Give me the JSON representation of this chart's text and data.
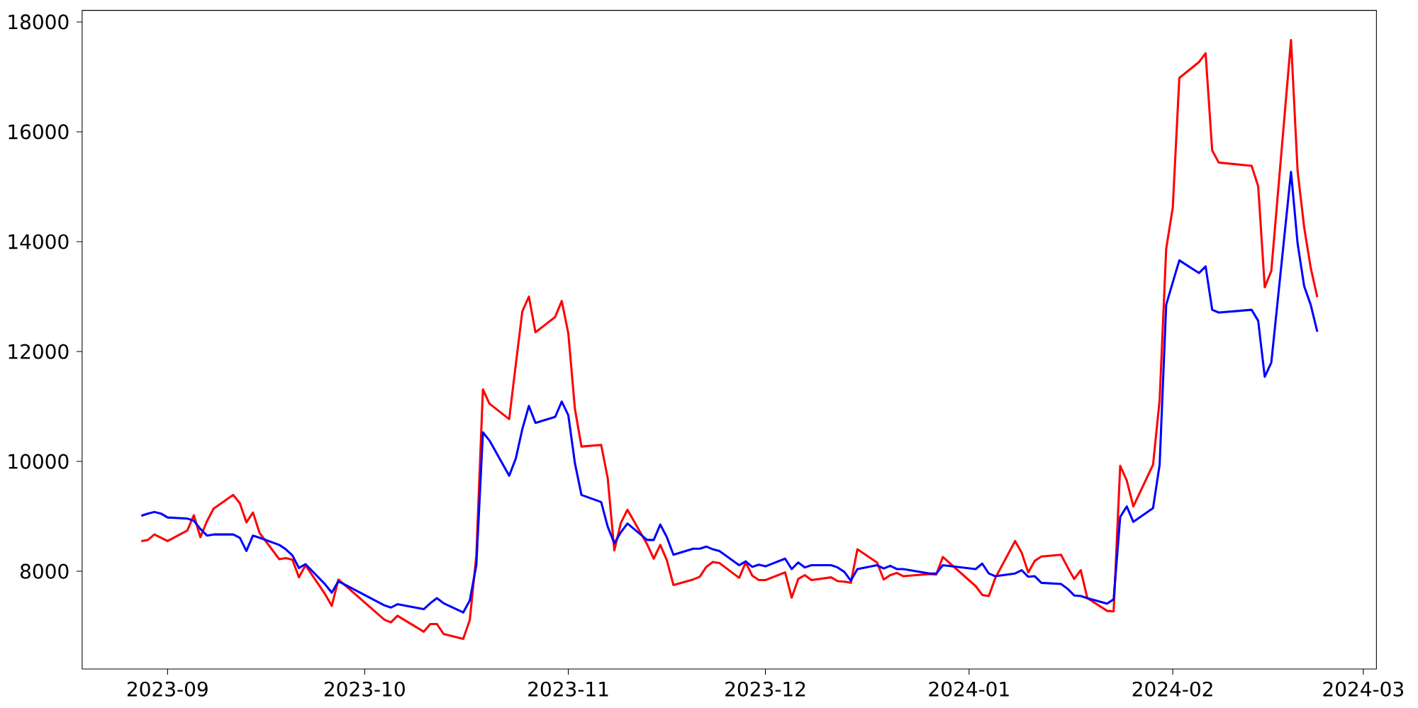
{
  "chart_data": {
    "type": "line",
    "x": [
      "2023-08-28",
      "2023-08-29",
      "2023-08-30",
      "2023-08-31",
      "2023-09-01",
      "2023-09-04",
      "2023-09-05",
      "2023-09-06",
      "2023-09-07",
      "2023-09-08",
      "2023-09-11",
      "2023-09-12",
      "2023-09-13",
      "2023-09-14",
      "2023-09-15",
      "2023-09-18",
      "2023-09-19",
      "2023-09-20",
      "2023-09-21",
      "2023-09-22",
      "2023-09-25",
      "2023-09-26",
      "2023-09-27",
      "2023-10-04",
      "2023-10-05",
      "2023-10-06",
      "2023-10-10",
      "2023-10-11",
      "2023-10-12",
      "2023-10-13",
      "2023-10-16",
      "2023-10-17",
      "2023-10-18",
      "2023-10-19",
      "2023-10-20",
      "2023-10-23",
      "2023-10-24",
      "2023-10-25",
      "2023-10-26",
      "2023-10-27",
      "2023-10-30",
      "2023-10-31",
      "2023-11-01",
      "2023-11-02",
      "2023-11-03",
      "2023-11-06",
      "2023-11-07",
      "2023-11-08",
      "2023-11-09",
      "2023-11-10",
      "2023-11-13",
      "2023-11-14",
      "2023-11-15",
      "2023-11-16",
      "2023-11-17",
      "2023-11-20",
      "2023-11-21",
      "2023-11-22",
      "2023-11-23",
      "2023-11-24",
      "2023-11-27",
      "2023-11-28",
      "2023-11-29",
      "2023-11-30",
      "2023-12-01",
      "2023-12-04",
      "2023-12-05",
      "2023-12-06",
      "2023-12-07",
      "2023-12-08",
      "2023-12-11",
      "2023-12-12",
      "2023-12-13",
      "2023-12-14",
      "2023-12-15",
      "2023-12-18",
      "2023-12-19",
      "2023-12-20",
      "2023-12-21",
      "2023-12-22",
      "2023-12-26",
      "2023-12-27",
      "2023-12-28",
      "2024-01-02",
      "2024-01-03",
      "2024-01-04",
      "2024-01-05",
      "2024-01-08",
      "2024-01-09",
      "2024-01-10",
      "2024-01-11",
      "2024-01-12",
      "2024-01-15",
      "2024-01-16",
      "2024-01-17",
      "2024-01-18",
      "2024-01-19",
      "2024-01-22",
      "2024-01-23",
      "2024-01-24",
      "2024-01-25",
      "2024-01-26",
      "2024-01-29",
      "2024-01-30",
      "2024-01-31",
      "2024-02-01",
      "2024-02-02",
      "2024-02-05",
      "2024-02-06",
      "2024-02-07",
      "2024-02-08",
      "2024-02-13",
      "2024-02-14",
      "2024-02-15",
      "2024-02-16",
      "2024-02-19",
      "2024-02-20",
      "2024-02-21",
      "2024-02-22",
      "2024-02-23"
    ],
    "series": [
      {
        "color": "#ff0000",
        "values": [
          8550,
          8570,
          8670,
          8610,
          8550,
          8740,
          9020,
          8620,
          8910,
          9140,
          9390,
          9240,
          8890,
          9070,
          8700,
          8220,
          8240,
          8210,
          7890,
          8110,
          7580,
          7370,
          7850,
          7120,
          7070,
          7190,
          6900,
          7040,
          7040,
          6860,
          6770,
          7110,
          8290,
          11310,
          11050,
          10770,
          11760,
          12730,
          13000,
          12350,
          12630,
          12920,
          12330,
          10960,
          10270,
          10300,
          9690,
          8380,
          8880,
          9120,
          8490,
          8230,
          8480,
          8200,
          7750,
          7850,
          7900,
          8080,
          8170,
          8150,
          7880,
          8160,
          7920,
          7840,
          7840,
          7980,
          7520,
          7860,
          7930,
          7840,
          7890,
          7820,
          7810,
          7790,
          8400,
          8160,
          7850,
          7930,
          7970,
          7910,
          7950,
          7940,
          8260,
          7730,
          7570,
          7550,
          7880,
          8550,
          8340,
          7980,
          8190,
          8270,
          8300,
          8070,
          7860,
          8020,
          7510,
          7280,
          7270,
          9920,
          9650,
          9180,
          9940,
          11110,
          13870,
          14620,
          16980,
          17270,
          17430,
          15660,
          15440,
          15380,
          15010,
          13170,
          13470,
          17670,
          15290,
          14260,
          13520,
          12990
        ]
      },
      {
        "color": "#0000ff",
        "values": [
          9010,
          9050,
          9080,
          9050,
          8980,
          8960,
          8920,
          8770,
          8650,
          8670,
          8670,
          8610,
          8370,
          8650,
          8610,
          8480,
          8400,
          8290,
          8060,
          8130,
          7760,
          7610,
          7820,
          7380,
          7340,
          7400,
          7310,
          7420,
          7510,
          7420,
          7250,
          7470,
          8110,
          10530,
          10380,
          9740,
          10050,
          10590,
          11010,
          10700,
          10810,
          11090,
          10840,
          9970,
          9390,
          9260,
          8810,
          8510,
          8710,
          8870,
          8570,
          8570,
          8850,
          8620,
          8300,
          8410,
          8410,
          8450,
          8400,
          8370,
          8110,
          8180,
          8080,
          8120,
          8090,
          8230,
          8040,
          8160,
          8070,
          8110,
          8110,
          8070,
          7990,
          7830,
          8040,
          8110,
          8050,
          8100,
          8040,
          8040,
          7960,
          7960,
          8110,
          8040,
          8140,
          7960,
          7910,
          7960,
          8020,
          7900,
          7910,
          7790,
          7770,
          7680,
          7560,
          7550,
          7510,
          7410,
          7490,
          8990,
          9180,
          8900,
          9150,
          9940,
          12850,
          13260,
          13660,
          13430,
          13550,
          12760,
          12710,
          12760,
          12560,
          11540,
          11800,
          15270,
          13970,
          13190,
          12850,
          12360
        ]
      }
    ],
    "xlim": [
      "2023-08-19",
      "2024-03-03"
    ],
    "xticks": [
      "2023-09",
      "2023-10",
      "2023-11",
      "2023-12",
      "2024-01",
      "2024-02",
      "2024-03"
    ],
    "ylim": [
      6220,
      18210
    ],
    "yticks": [
      8000,
      10000,
      12000,
      14000,
      16000,
      18000
    ]
  }
}
